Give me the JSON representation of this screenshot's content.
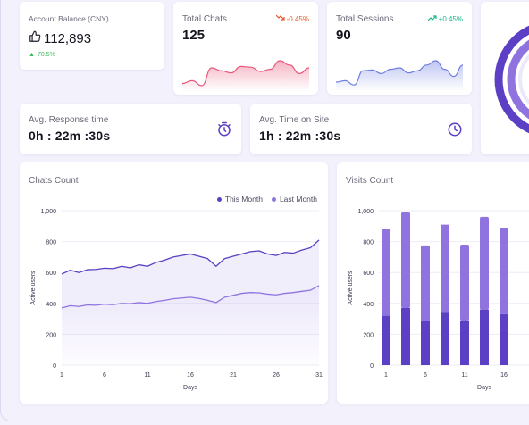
{
  "account": {
    "title": "Account Balance (CNY)",
    "value": "112,893",
    "change": "70.5%",
    "change_color": "#3dbb5a"
  },
  "total_chats": {
    "title": "Total Chats",
    "value": "125",
    "delta": "-0.45%",
    "delta_color": "#e5572b",
    "sparkline": [
      42,
      38,
      45,
      20,
      24,
      27,
      18,
      19,
      25,
      22,
      10,
      16,
      28,
      20
    ]
  },
  "total_sessions": {
    "title": "Total Sessions",
    "value": "90",
    "delta": "+0.45%",
    "delta_color": "#1bb58a",
    "sparkline": [
      40,
      38,
      44,
      24,
      23,
      28,
      22,
      20,
      27,
      24,
      16,
      10,
      22,
      32,
      16
    ]
  },
  "response_time": {
    "title": "Avg. Response time",
    "value": "0h : 22m :30s",
    "icon": "stopwatch-icon"
  },
  "time_on_site": {
    "title": "Avg. Time on Site",
    "value": "1h : 22m :30s",
    "icon": "clock-icon"
  },
  "chats_count": {
    "title": "Chats Count",
    "legend": {
      "this_month": "This Month",
      "last_month": "Last Month"
    },
    "xlabel": "Days",
    "ylabel": "Active users"
  },
  "visits_count": {
    "title": "Visits Count",
    "xlabel": "Days",
    "ylabel": "Active users"
  },
  "colors": {
    "primary": "#5b3fc4",
    "primary_light": "#8f74e0",
    "chat_spark": "#e8577a",
    "session_spark": "#6f7fe0"
  },
  "chart_data": [
    {
      "type": "line",
      "title": "Chats Count",
      "xlabel": "Days",
      "ylabel": "Active users",
      "ylim": [
        0,
        1000
      ],
      "yticks": [
        0,
        200,
        400,
        600,
        800,
        1000
      ],
      "xticks": [
        1,
        6,
        11,
        16,
        21,
        26,
        31
      ],
      "legend": "top-right",
      "grid": true,
      "series": [
        {
          "name": "This Month",
          "x": [
            1,
            2,
            3,
            4,
            5,
            6,
            7,
            8,
            9,
            10,
            11,
            12,
            13,
            14,
            15,
            16,
            17,
            18,
            19,
            20,
            21,
            22,
            23,
            24,
            25,
            26,
            27,
            28,
            29,
            30,
            31
          ],
          "values": [
            590,
            615,
            600,
            618,
            620,
            628,
            625,
            640,
            630,
            650,
            640,
            665,
            680,
            700,
            710,
            720,
            705,
            690,
            640,
            690,
            705,
            720,
            735,
            740,
            720,
            710,
            730,
            725,
            745,
            760,
            810
          ]
        },
        {
          "name": "Last Month",
          "x": [
            1,
            2,
            3,
            4,
            5,
            6,
            7,
            8,
            9,
            10,
            11,
            12,
            13,
            14,
            15,
            16,
            17,
            18,
            19,
            20,
            21,
            22,
            23,
            24,
            25,
            26,
            27,
            28,
            29,
            30,
            31
          ],
          "values": [
            370,
            385,
            380,
            390,
            388,
            395,
            392,
            400,
            398,
            405,
            400,
            412,
            420,
            430,
            435,
            440,
            432,
            420,
            405,
            440,
            452,
            465,
            470,
            468,
            460,
            455,
            465,
            470,
            478,
            485,
            515
          ]
        }
      ]
    },
    {
      "type": "bar",
      "title": "Visits Count",
      "xlabel": "Days",
      "ylabel": "Active users",
      "ylim": [
        0,
        1000
      ],
      "yticks": [
        0,
        200,
        400,
        600,
        800,
        1000
      ],
      "xticks": [
        1,
        6,
        11,
        16
      ],
      "grid": true,
      "series": [
        {
          "name": "",
          "values": [
            320,
            370,
            285,
            340,
            290,
            360,
            330
          ]
        },
        {
          "name": "",
          "values": [
            560,
            620,
            490,
            570,
            490,
            600,
            560
          ]
        }
      ],
      "x": [
        1,
        3.5,
        6,
        8.5,
        11,
        13.5,
        16
      ]
    }
  ]
}
